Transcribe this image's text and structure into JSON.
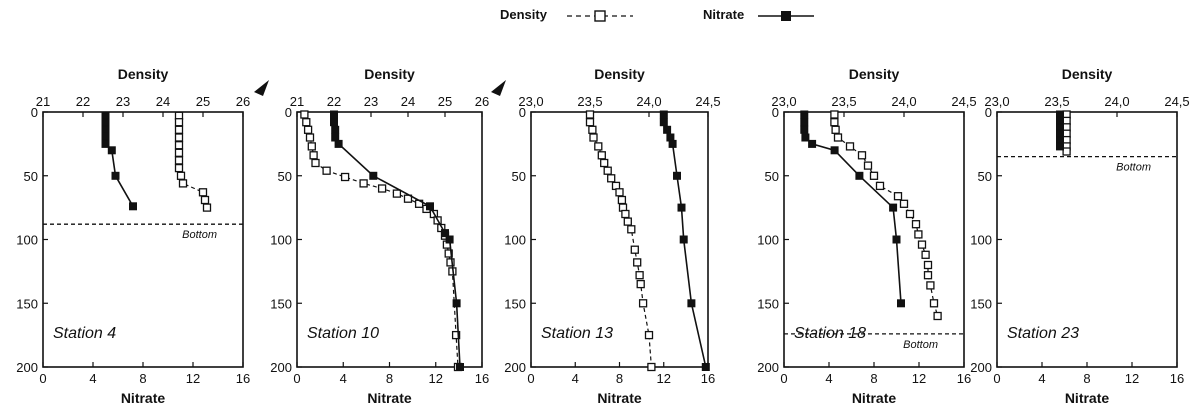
{
  "legend": {
    "density_label": "Density",
    "nitrate_label": "Nitrate"
  },
  "colors": {
    "ink": "#111111",
    "paper": "#ffffff"
  },
  "chart_data": [
    {
      "type": "scatter",
      "station": "Station 4",
      "top_axis_label": "Density",
      "bottom_axis_label": "Nitrate",
      "density_ticks": [
        "21",
        "22",
        "23",
        "24",
        "25",
        "26"
      ],
      "density_range": [
        21,
        26
      ],
      "nitrate_ticks": [
        "0",
        "4",
        "8",
        "12",
        "16"
      ],
      "nitrate_range": [
        0,
        16
      ],
      "depth_ticks": [
        "0",
        "50",
        "100",
        "150",
        "200"
      ],
      "depth_range": [
        0,
        200
      ],
      "bottom_depth": 88,
      "bottom_label": "Bottom",
      "series": [
        {
          "name": "Density",
          "marker": "open-square",
          "line": "dashed",
          "points": [
            [
              24.4,
              3
            ],
            [
              24.4,
              8
            ],
            [
              24.4,
              14
            ],
            [
              24.4,
              20
            ],
            [
              24.4,
              26
            ],
            [
              24.4,
              32
            ],
            [
              24.4,
              38
            ],
            [
              24.4,
              44
            ],
            [
              24.45,
              50
            ],
            [
              24.5,
              56
            ],
            [
              25,
              63
            ],
            [
              25.05,
              69
            ],
            [
              25.1,
              75
            ]
          ]
        },
        {
          "name": "Nitrate",
          "marker": "filled-square",
          "line": "solid",
          "points": [
            [
              5,
              3
            ],
            [
              5,
              8
            ],
            [
              5,
              14
            ],
            [
              5,
              20
            ],
            [
              5,
              25
            ],
            [
              5.5,
              30
            ],
            [
              5.8,
              50
            ],
            [
              7.2,
              74
            ]
          ]
        }
      ]
    },
    {
      "type": "scatter",
      "station": "Station 10",
      "top_axis_label": "Density",
      "bottom_axis_label": "Nitrate",
      "density_ticks": [
        "21",
        "22",
        "23",
        "24",
        "25",
        "26"
      ],
      "density_range": [
        21,
        26
      ],
      "nitrate_ticks": [
        "0",
        "4",
        "8",
        "12",
        "16"
      ],
      "nitrate_range": [
        0,
        16
      ],
      "depth_ticks": [
        "0",
        "50",
        "100",
        "150",
        "200"
      ],
      "depth_range": [
        0,
        200
      ],
      "series": [
        {
          "name": "Density",
          "marker": "open-square",
          "line": "dashed",
          "points": [
            [
              21.2,
              2
            ],
            [
              21.25,
              8
            ],
            [
              21.3,
              14
            ],
            [
              21.35,
              20
            ],
            [
              21.4,
              27
            ],
            [
              21.45,
              34
            ],
            [
              21.5,
              40
            ],
            [
              21.8,
              46
            ],
            [
              22.3,
              51
            ],
            [
              22.8,
              56
            ],
            [
              23.3,
              60
            ],
            [
              23.7,
              64
            ],
            [
              24,
              68
            ],
            [
              24.3,
              72
            ],
            [
              24.5,
              76
            ],
            [
              24.7,
              80
            ],
            [
              24.8,
              85
            ],
            [
              24.9,
              91
            ],
            [
              25,
              97
            ],
            [
              25.05,
              104
            ],
            [
              25.1,
              111
            ],
            [
              25.15,
              118
            ],
            [
              25.2,
              125
            ],
            [
              25.3,
              175
            ],
            [
              25.35,
              200
            ]
          ]
        },
        {
          "name": "Nitrate",
          "marker": "filled-square",
          "line": "solid",
          "points": [
            [
              3.2,
              2
            ],
            [
              3.2,
              8
            ],
            [
              3.3,
              14
            ],
            [
              3.3,
              20
            ],
            [
              3.6,
              25
            ],
            [
              6.6,
              50
            ],
            [
              11.5,
              74
            ],
            [
              12.8,
              95
            ],
            [
              13.2,
              100
            ],
            [
              13.8,
              150
            ],
            [
              14.1,
              200
            ]
          ]
        }
      ]
    },
    {
      "type": "scatter",
      "station": "Station 13",
      "top_axis_label": "Density",
      "bottom_axis_label": "Nitrate",
      "density_ticks": [
        "23,0",
        "23,5",
        "24,0",
        "24,5"
      ],
      "density_range": [
        23.0,
        24.5
      ],
      "nitrate_ticks": [
        "0",
        "4",
        "8",
        "12",
        "16"
      ],
      "nitrate_range": [
        0,
        16
      ],
      "depth_ticks": [
        "0",
        "50",
        "100",
        "150",
        "200"
      ],
      "depth_range": [
        0,
        200
      ],
      "series": [
        {
          "name": "Density",
          "marker": "open-square",
          "line": "dashed",
          "points": [
            [
              23.5,
              2
            ],
            [
              23.5,
              8
            ],
            [
              23.52,
              14
            ],
            [
              23.53,
              20
            ],
            [
              23.57,
              27
            ],
            [
              23.6,
              34
            ],
            [
              23.62,
              40
            ],
            [
              23.65,
              46
            ],
            [
              23.68,
              52
            ],
            [
              23.72,
              58
            ],
            [
              23.75,
              63
            ],
            [
              23.77,
              69
            ],
            [
              23.78,
              75
            ],
            [
              23.8,
              80
            ],
            [
              23.82,
              86
            ],
            [
              23.85,
              92
            ],
            [
              23.88,
              108
            ],
            [
              23.9,
              118
            ],
            [
              23.92,
              128
            ],
            [
              23.93,
              135
            ],
            [
              23.95,
              150
            ],
            [
              24,
              175
            ],
            [
              24.02,
              200
            ]
          ]
        },
        {
          "name": "Nitrate",
          "marker": "filled-square",
          "line": "solid",
          "points": [
            [
              12,
              2
            ],
            [
              12,
              8
            ],
            [
              12.3,
              14
            ],
            [
              12.6,
              20
            ],
            [
              12.8,
              25
            ],
            [
              13.2,
              50
            ],
            [
              13.6,
              75
            ],
            [
              13.8,
              100
            ],
            [
              14.5,
              150
            ],
            [
              15.8,
              200
            ]
          ]
        }
      ]
    },
    {
      "type": "scatter",
      "station": "Station 18",
      "top_axis_label": "Density",
      "bottom_axis_label": "Nitrate",
      "density_ticks": [
        "23,0",
        "23,5",
        "24,0",
        "24,5"
      ],
      "density_range": [
        23.0,
        24.5
      ],
      "nitrate_ticks": [
        "0",
        "4",
        "8",
        "12",
        "16"
      ],
      "nitrate_range": [
        0,
        16
      ],
      "depth_ticks": [
        "0",
        "50",
        "100",
        "150",
        "200"
      ],
      "depth_range": [
        0,
        200
      ],
      "bottom_depth": 174,
      "bottom_label": "Bottom",
      "series": [
        {
          "name": "Density",
          "marker": "open-square",
          "line": "dashed",
          "points": [
            [
              23.42,
              2
            ],
            [
              23.42,
              8
            ],
            [
              23.43,
              14
            ],
            [
              23.45,
              20
            ],
            [
              23.55,
              27
            ],
            [
              23.65,
              34
            ],
            [
              23.7,
              42
            ],
            [
              23.75,
              50
            ],
            [
              23.8,
              58
            ],
            [
              23.95,
              66
            ],
            [
              24,
              72
            ],
            [
              24.05,
              80
            ],
            [
              24.1,
              88
            ],
            [
              24.12,
              96
            ],
            [
              24.15,
              104
            ],
            [
              24.18,
              112
            ],
            [
              24.2,
              120
            ],
            [
              24.2,
              128
            ],
            [
              24.22,
              136
            ],
            [
              24.25,
              150
            ],
            [
              24.28,
              160
            ]
          ]
        },
        {
          "name": "Nitrate",
          "marker": "filled-square",
          "line": "solid",
          "points": [
            [
              1.8,
              2
            ],
            [
              1.8,
              8
            ],
            [
              1.8,
              14
            ],
            [
              1.9,
              20
            ],
            [
              2.5,
              25
            ],
            [
              4.5,
              30
            ],
            [
              6.7,
              50
            ],
            [
              9.7,
              75
            ],
            [
              10,
              100
            ],
            [
              10.4,
              150
            ]
          ]
        }
      ]
    },
    {
      "type": "scatter",
      "station": "Station 23",
      "top_axis_label": "Density",
      "bottom_axis_label": "Nitrate",
      "density_ticks": [
        "23,0",
        "23,5",
        "24,0",
        "24,5"
      ],
      "density_range": [
        23.0,
        24.5
      ],
      "nitrate_ticks": [
        "0",
        "4",
        "8",
        "12",
        "16"
      ],
      "nitrate_range": [
        0,
        16
      ],
      "depth_ticks": [
        "0",
        "50",
        "100",
        "150",
        "200"
      ],
      "depth_range": [
        0,
        200
      ],
      "bottom_depth": 35,
      "bottom_label": "Bottom",
      "series": [
        {
          "name": "Density",
          "marker": "open-square",
          "line": "dashed",
          "points": [
            [
              23.58,
              2
            ],
            [
              23.58,
              7
            ],
            [
              23.58,
              12
            ],
            [
              23.58,
              17
            ],
            [
              23.58,
              22
            ],
            [
              23.58,
              27
            ],
            [
              23.58,
              31
            ]
          ]
        },
        {
          "name": "Nitrate",
          "marker": "filled-square",
          "line": "solid",
          "points": [
            [
              5.6,
              2
            ],
            [
              5.6,
              7
            ],
            [
              5.6,
              12
            ],
            [
              5.6,
              17
            ],
            [
              5.6,
              22
            ],
            [
              5.6,
              27
            ]
          ]
        }
      ]
    }
  ]
}
